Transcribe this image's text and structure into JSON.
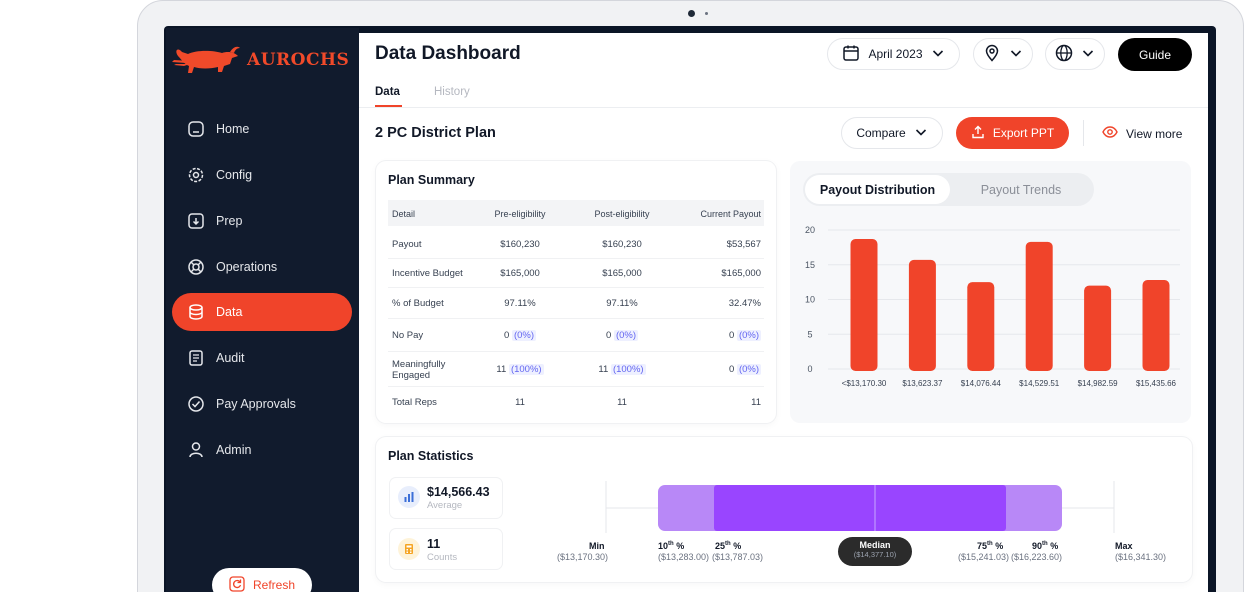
{
  "brand": {
    "name": "AUROCHS"
  },
  "colors": {
    "accent": "#f0442a",
    "sidebar": "#111b2d",
    "bar": "#f0442a",
    "box_light": "#b888f7",
    "box_dark": "#9945ff"
  },
  "nav": {
    "items": [
      {
        "label": "Home",
        "icon": "home-icon"
      },
      {
        "label": "Config",
        "icon": "gear-icon"
      },
      {
        "label": "Prep",
        "icon": "download-box-icon"
      },
      {
        "label": "Operations",
        "icon": "lifebuoy-icon"
      },
      {
        "label": "Data",
        "icon": "database-icon",
        "active": true
      },
      {
        "label": "Audit",
        "icon": "document-icon"
      },
      {
        "label": "Pay Approvals",
        "icon": "check-circle-icon"
      },
      {
        "label": "Admin",
        "icon": "user-icon"
      }
    ],
    "refresh_label": "Refresh"
  },
  "header": {
    "title": "Data Dashboard",
    "date_label": "April 2023",
    "guide_label": "Guide"
  },
  "tabs": [
    {
      "label": "Data",
      "active": true
    },
    {
      "label": "History"
    }
  ],
  "plan": {
    "title": "2 PC District Plan",
    "compare_label": "Compare",
    "export_label": "Export PPT",
    "view_more_label": "View more"
  },
  "summary": {
    "title": "Plan Summary",
    "columns": [
      "Detail",
      "Pre-eligibility",
      "Post-eligibility",
      "Current Payout"
    ],
    "rows": [
      {
        "detail": "Payout",
        "pre": "$160,230",
        "post": "$160,230",
        "current": "$53,567"
      },
      {
        "detail": "Incentive Budget",
        "pre": "$165,000",
        "post": "$165,000",
        "current": "$165,000"
      },
      {
        "detail": "% of Budget",
        "pre": "97.11%",
        "post": "97.11%",
        "current": "32.47%"
      },
      {
        "detail": "No Pay",
        "pre": "0",
        "pre_pct": "(0%)",
        "post": "0",
        "post_pct": "(0%)",
        "current": "0",
        "current_pct": "(0%)"
      },
      {
        "detail": "Meaningfully",
        "detail2": "Engaged",
        "pre": "11",
        "pre_pct": "(100%)",
        "post": "11",
        "post_pct": "(100%)",
        "current": "0",
        "current_pct": "(0%)"
      },
      {
        "detail": "Total Reps",
        "pre": "11",
        "post": "11",
        "current": "11"
      }
    ]
  },
  "chart_tabs": {
    "active": "Payout Distribution",
    "inactive": "Payout Trends"
  },
  "chart_data": {
    "type": "bar",
    "categories": [
      "<$13,170.30",
      "$13,623.37",
      "$14,076.44",
      "$14,529.51",
      "$14,982.59",
      "$15,435.66"
    ],
    "values": [
      18.7,
      15.7,
      12.5,
      18.3,
      12.0,
      12.8
    ],
    "yticks": [
      0,
      5,
      10,
      15,
      20
    ],
    "ylim": [
      0,
      20
    ],
    "grid": true
  },
  "stats": {
    "title": "Plan Statistics",
    "average_value": "$14,566.43",
    "average_label": "Average",
    "count_value": "11",
    "count_label": "Counts",
    "min_label": "Min",
    "min_value": "($13,170.30)",
    "p10_label": "10",
    "p10_sup": "th",
    "p10_suffix": " %",
    "p10_value": "($13,283.00)",
    "p25_label": "25",
    "p25_sup": "th",
    "p25_suffix": " %",
    "p25_value": "($13,787.03)",
    "median_label": "Median",
    "median_value": "($14,377.10)",
    "p75_label": "75",
    "p75_sup": "th",
    "p75_suffix": " %",
    "p75_value": "($15,241.03)",
    "p90_label": "90",
    "p90_sup": "th",
    "p90_suffix": " %",
    "p90_value": "($16,223.60)",
    "max_label": "Max",
    "max_value": "($16,341.30)"
  }
}
